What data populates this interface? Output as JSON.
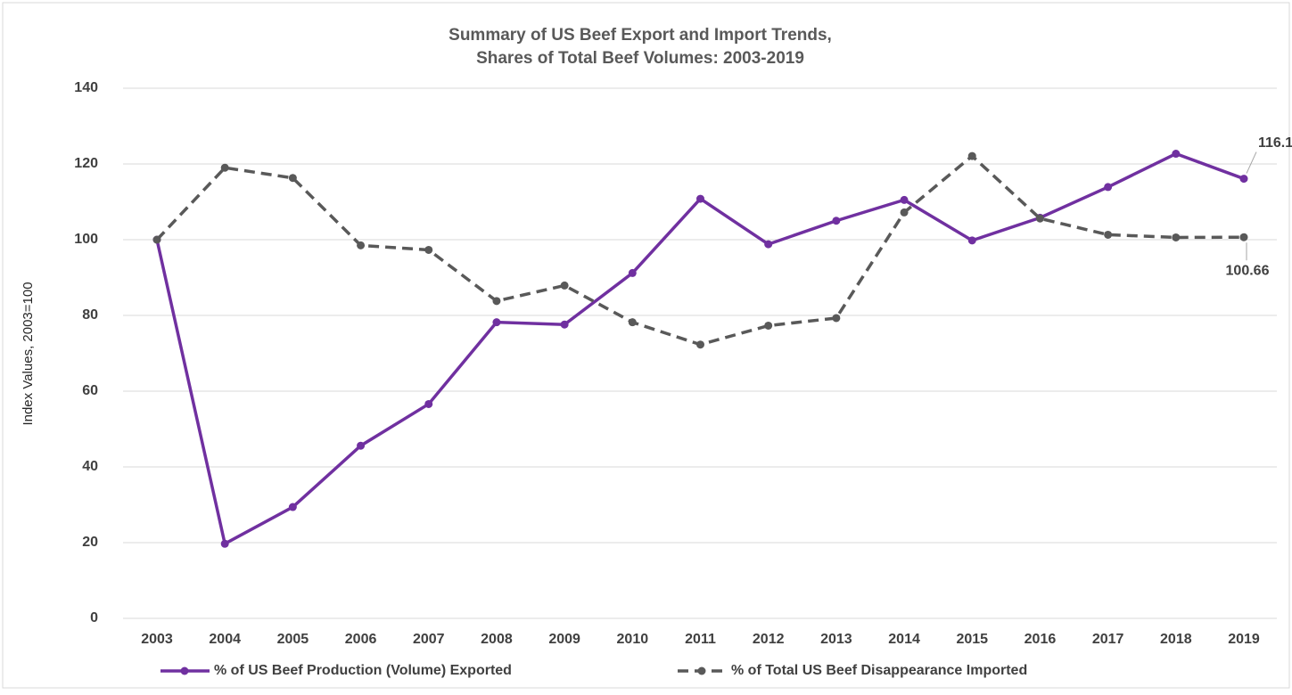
{
  "chart_data": {
    "type": "line",
    "title": "Summary of US Beef Export and Import Trends,",
    "subtitle": "Shares of Total Beef Volumes: 2003-2019",
    "y_label": "Index Values, 2003=100",
    "categories": [
      "2003",
      "2004",
      "2005",
      "2006",
      "2007",
      "2008",
      "2009",
      "2010",
      "2011",
      "2012",
      "2013",
      "2014",
      "2015",
      "2016",
      "2017",
      "2018",
      "2019"
    ],
    "series": [
      {
        "name": "% of US Beef Production (Volume) Exported",
        "color": "#7030a0",
        "dash": false,
        "values": [
          100,
          19.7,
          29.4,
          45.6,
          56.6,
          78.2,
          77.6,
          91.2,
          110.8,
          98.8,
          105,
          110.5,
          99.8,
          105.8,
          113.9,
          122.7,
          116.1
        ],
        "value_labels": [
          null,
          null,
          null,
          null,
          null,
          null,
          null,
          null,
          null,
          null,
          null,
          null,
          null,
          null,
          null,
          null,
          "116.10"
        ]
      },
      {
        "name": "% of Total US Beef Disappearance Imported",
        "color": "#595959",
        "dash": true,
        "values": [
          100,
          119,
          116.3,
          98.5,
          97.3,
          83.8,
          87.9,
          78.2,
          72.3,
          77.3,
          79.3,
          107.2,
          122.1,
          105.6,
          101.3,
          100.6,
          100.66
        ],
        "value_labels": [
          null,
          null,
          null,
          null,
          null,
          null,
          null,
          null,
          null,
          null,
          null,
          null,
          null,
          null,
          null,
          null,
          "100.66"
        ]
      }
    ],
    "ylim": [
      0,
      140
    ],
    "yticks": [
      0,
      20,
      40,
      60,
      80,
      100,
      120,
      140
    ],
    "grid": true,
    "legend": "bottom"
  }
}
